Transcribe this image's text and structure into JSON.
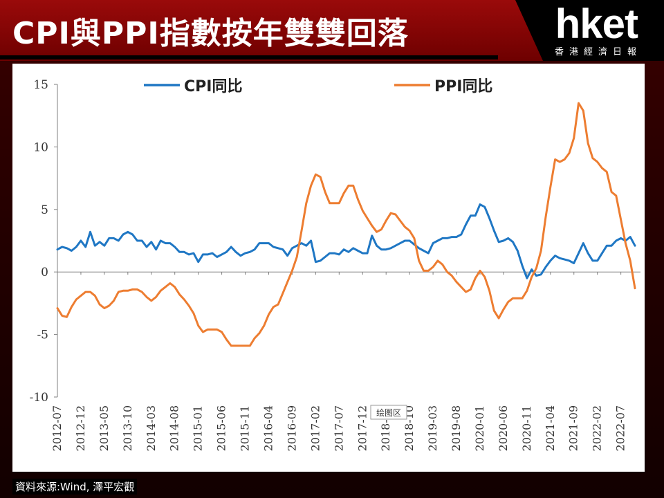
{
  "header": {
    "title": "CPI與PPI指數按年雙雙回落",
    "logo": "hket",
    "logo_sub": "香港經濟日報"
  },
  "source_text": "資料來源:Wind, 澤平宏觀",
  "watermark_label": "绘图区",
  "colors": {
    "cpi": "#1f77c4",
    "ppi": "#ed7d31"
  },
  "chart_data": {
    "type": "line",
    "title": "",
    "xlabel": "",
    "ylabel": "",
    "ylim": [
      -10,
      15
    ],
    "y_ticks": [
      15,
      10,
      5,
      0,
      -5,
      -10
    ],
    "grid": false,
    "legend_position": "top",
    "x_start": "2012-07",
    "x_tick_labels": [
      "2012-07",
      "2012-12",
      "2013-05",
      "2013-10",
      "2014-03",
      "2014-08",
      "2015-01",
      "2015-06",
      "2015-11",
      "2016-04",
      "2016-09",
      "2017-02",
      "2017-07",
      "2017-12",
      "2018-05",
      "2018-10",
      "2019-03",
      "2019-08",
      "2020-01",
      "2020-06",
      "2020-11",
      "2021-04",
      "2021-09",
      "2022-02",
      "2022-07"
    ],
    "series": [
      {
        "name": "CPI同比",
        "color": "#1f77c4",
        "points": [
          [
            0,
            1.8
          ],
          [
            1,
            2.0
          ],
          [
            2,
            1.9
          ],
          [
            3,
            1.7
          ],
          [
            4,
            2.0
          ],
          [
            5,
            2.5
          ],
          [
            6,
            2.0
          ],
          [
            7,
            3.2
          ],
          [
            8,
            2.1
          ],
          [
            9,
            2.4
          ],
          [
            10,
            2.1
          ],
          [
            11,
            2.7
          ],
          [
            12,
            2.7
          ],
          [
            13,
            2.5
          ],
          [
            14,
            3.0
          ],
          [
            15,
            3.2
          ],
          [
            16,
            3.0
          ],
          [
            17,
            2.5
          ],
          [
            18,
            2.5
          ],
          [
            19,
            2.0
          ],
          [
            20,
            2.4
          ],
          [
            21,
            1.8
          ],
          [
            22,
            2.5
          ],
          [
            23,
            2.3
          ],
          [
            24,
            2.3
          ],
          [
            25,
            2.0
          ],
          [
            26,
            1.6
          ],
          [
            27,
            1.6
          ],
          [
            28,
            1.4
          ],
          [
            29,
            1.5
          ],
          [
            30,
            0.8
          ],
          [
            31,
            1.4
          ],
          [
            32,
            1.4
          ],
          [
            33,
            1.5
          ],
          [
            34,
            1.2
          ],
          [
            35,
            1.4
          ],
          [
            36,
            1.6
          ],
          [
            37,
            2.0
          ],
          [
            38,
            1.6
          ],
          [
            39,
            1.3
          ],
          [
            40,
            1.5
          ],
          [
            41,
            1.6
          ],
          [
            42,
            1.8
          ],
          [
            43,
            2.3
          ],
          [
            44,
            2.3
          ],
          [
            45,
            2.3
          ],
          [
            46,
            2.0
          ],
          [
            47,
            1.9
          ],
          [
            48,
            1.8
          ],
          [
            49,
            1.3
          ],
          [
            50,
            1.9
          ],
          [
            51,
            2.1
          ],
          [
            52,
            2.3
          ],
          [
            53,
            2.1
          ],
          [
            54,
            2.5
          ],
          [
            55,
            0.8
          ],
          [
            56,
            0.9
          ],
          [
            57,
            1.2
          ],
          [
            58,
            1.5
          ],
          [
            59,
            1.5
          ],
          [
            60,
            1.4
          ],
          [
            61,
            1.8
          ],
          [
            62,
            1.6
          ],
          [
            63,
            1.9
          ],
          [
            64,
            1.7
          ],
          [
            65,
            1.5
          ],
          [
            66,
            1.5
          ],
          [
            67,
            2.9
          ],
          [
            68,
            2.1
          ],
          [
            69,
            1.8
          ],
          [
            70,
            1.8
          ],
          [
            71,
            1.9
          ],
          [
            72,
            2.1
          ],
          [
            73,
            2.3
          ],
          [
            74,
            2.5
          ],
          [
            75,
            2.5
          ],
          [
            76,
            2.2
          ],
          [
            77,
            1.9
          ],
          [
            78,
            1.7
          ],
          [
            79,
            1.5
          ],
          [
            80,
            2.3
          ],
          [
            81,
            2.5
          ],
          [
            82,
            2.7
          ],
          [
            83,
            2.7
          ],
          [
            84,
            2.8
          ],
          [
            85,
            2.8
          ],
          [
            86,
            3.0
          ],
          [
            87,
            3.8
          ],
          [
            88,
            4.5
          ],
          [
            89,
            4.5
          ],
          [
            90,
            5.4
          ],
          [
            91,
            5.2
          ],
          [
            92,
            4.3
          ],
          [
            93,
            3.3
          ],
          [
            94,
            2.4
          ],
          [
            95,
            2.5
          ],
          [
            96,
            2.7
          ],
          [
            97,
            2.4
          ],
          [
            98,
            1.7
          ],
          [
            99,
            0.5
          ],
          [
            100,
            -0.5
          ],
          [
            101,
            0.2
          ],
          [
            102,
            -0.3
          ],
          [
            103,
            -0.2
          ],
          [
            104,
            0.4
          ],
          [
            105,
            0.9
          ],
          [
            106,
            1.3
          ],
          [
            107,
            1.1
          ],
          [
            108,
            1.0
          ],
          [
            109,
            0.9
          ],
          [
            110,
            0.7
          ],
          [
            111,
            1.5
          ],
          [
            112,
            2.3
          ],
          [
            113,
            1.5
          ],
          [
            114,
            0.9
          ],
          [
            115,
            0.9
          ],
          [
            116,
            1.5
          ],
          [
            117,
            2.1
          ],
          [
            118,
            2.1
          ],
          [
            119,
            2.5
          ],
          [
            120,
            2.7
          ],
          [
            121,
            2.5
          ],
          [
            122,
            2.8
          ],
          [
            123,
            2.1
          ]
        ]
      },
      {
        "name": "PPI同比",
        "color": "#ed7d31",
        "points": [
          [
            0,
            -2.9
          ],
          [
            1,
            -3.5
          ],
          [
            2,
            -3.6
          ],
          [
            3,
            -2.8
          ],
          [
            4,
            -2.2
          ],
          [
            5,
            -1.9
          ],
          [
            6,
            -1.6
          ],
          [
            7,
            -1.6
          ],
          [
            8,
            -1.9
          ],
          [
            9,
            -2.6
          ],
          [
            10,
            -2.9
          ],
          [
            11,
            -2.7
          ],
          [
            12,
            -2.3
          ],
          [
            13,
            -1.6
          ],
          [
            14,
            -1.5
          ],
          [
            15,
            -1.5
          ],
          [
            16,
            -1.4
          ],
          [
            17,
            -1.4
          ],
          [
            18,
            -1.6
          ],
          [
            19,
            -2.0
          ],
          [
            20,
            -2.3
          ],
          [
            21,
            -2.0
          ],
          [
            22,
            -1.5
          ],
          [
            23,
            -1.2
          ],
          [
            24,
            -0.9
          ],
          [
            25,
            -1.2
          ],
          [
            26,
            -1.8
          ],
          [
            27,
            -2.2
          ],
          [
            28,
            -2.7
          ],
          [
            29,
            -3.3
          ],
          [
            30,
            -4.3
          ],
          [
            31,
            -4.8
          ],
          [
            32,
            -4.6
          ],
          [
            33,
            -4.6
          ],
          [
            34,
            -4.6
          ],
          [
            35,
            -4.8
          ],
          [
            36,
            -5.4
          ],
          [
            37,
            -5.9
          ],
          [
            38,
            -5.9
          ],
          [
            39,
            -5.9
          ],
          [
            40,
            -5.9
          ],
          [
            41,
            -5.9
          ],
          [
            42,
            -5.3
          ],
          [
            43,
            -4.9
          ],
          [
            44,
            -4.3
          ],
          [
            45,
            -3.4
          ],
          [
            46,
            -2.8
          ],
          [
            47,
            -2.6
          ],
          [
            48,
            -1.7
          ],
          [
            49,
            -0.8
          ],
          [
            50,
            0.1
          ],
          [
            51,
            1.2
          ],
          [
            52,
            3.3
          ],
          [
            53,
            5.5
          ],
          [
            54,
            6.9
          ],
          [
            55,
            7.8
          ],
          [
            56,
            7.6
          ],
          [
            57,
            6.4
          ],
          [
            58,
            5.5
          ],
          [
            59,
            5.5
          ],
          [
            60,
            5.5
          ],
          [
            61,
            6.3
          ],
          [
            62,
            6.9
          ],
          [
            63,
            6.9
          ],
          [
            64,
            5.8
          ],
          [
            65,
            4.9
          ],
          [
            66,
            4.3
          ],
          [
            67,
            3.7
          ],
          [
            68,
            3.2
          ],
          [
            69,
            3.4
          ],
          [
            70,
            4.1
          ],
          [
            71,
            4.7
          ],
          [
            72,
            4.6
          ],
          [
            73,
            4.1
          ],
          [
            74,
            3.6
          ],
          [
            75,
            3.3
          ],
          [
            76,
            2.7
          ],
          [
            77,
            0.9
          ],
          [
            78,
            0.1
          ],
          [
            79,
            0.1
          ],
          [
            80,
            0.4
          ],
          [
            81,
            0.9
          ],
          [
            82,
            0.6
          ],
          [
            83,
            0.0
          ],
          [
            84,
            -0.3
          ],
          [
            85,
            -0.8
          ],
          [
            86,
            -1.2
          ],
          [
            87,
            -1.6
          ],
          [
            88,
            -1.4
          ],
          [
            89,
            -0.5
          ],
          [
            90,
            0.1
          ],
          [
            91,
            -0.4
          ],
          [
            92,
            -1.5
          ],
          [
            93,
            -3.1
          ],
          [
            94,
            -3.7
          ],
          [
            95,
            -3.0
          ],
          [
            96,
            -2.4
          ],
          [
            97,
            -2.1
          ],
          [
            98,
            -2.1
          ],
          [
            99,
            -2.1
          ],
          [
            100,
            -1.5
          ],
          [
            101,
            -0.4
          ],
          [
            102,
            0.3
          ],
          [
            103,
            1.7
          ],
          [
            104,
            4.4
          ],
          [
            105,
            6.8
          ],
          [
            106,
            9.0
          ],
          [
            107,
            8.8
          ],
          [
            108,
            9.0
          ],
          [
            109,
            9.5
          ],
          [
            110,
            10.7
          ],
          [
            111,
            13.5
          ],
          [
            112,
            12.9
          ],
          [
            113,
            10.3
          ],
          [
            114,
            9.1
          ],
          [
            115,
            8.8
          ],
          [
            116,
            8.3
          ],
          [
            117,
            8.0
          ],
          [
            118,
            6.4
          ],
          [
            119,
            6.1
          ],
          [
            120,
            4.2
          ],
          [
            121,
            2.3
          ],
          [
            122,
            0.9
          ],
          [
            123,
            -1.3
          ]
        ]
      }
    ]
  }
}
